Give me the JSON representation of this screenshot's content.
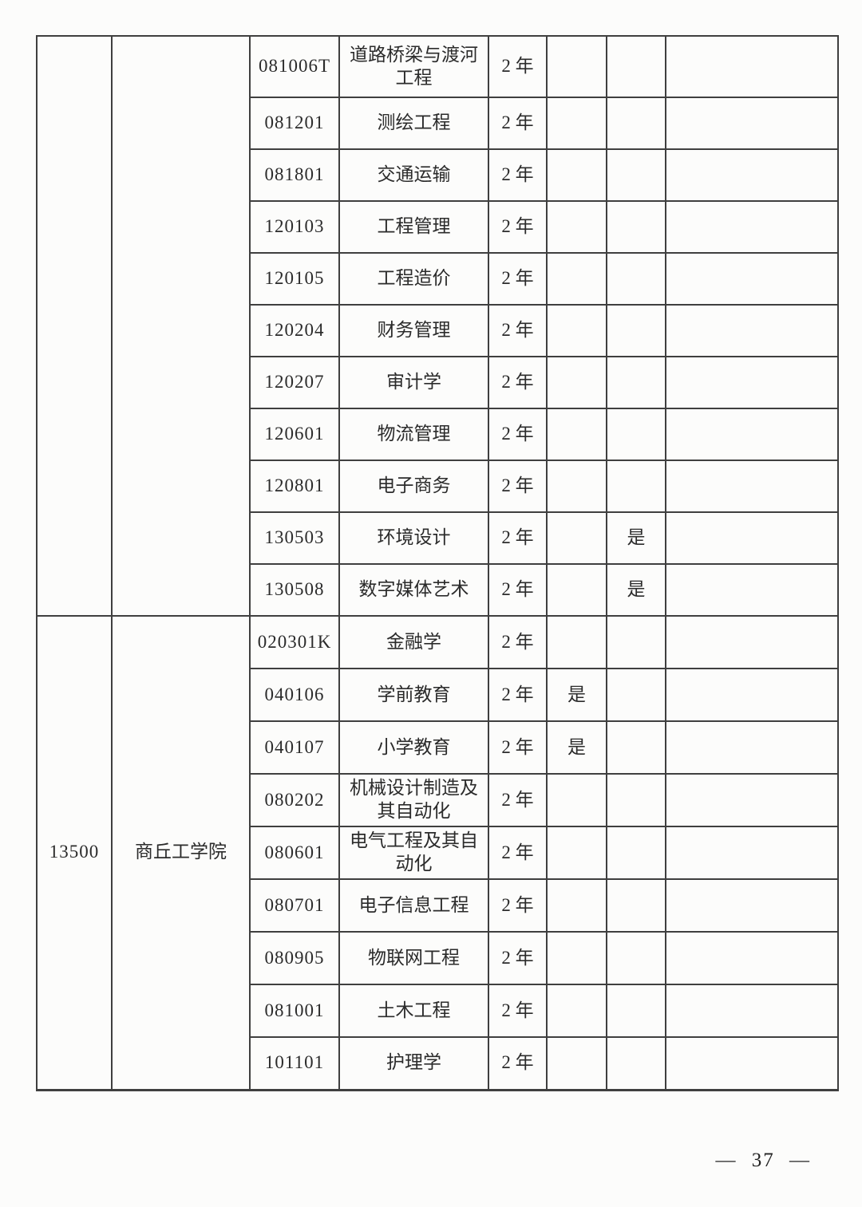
{
  "page": {
    "number_display": "— 37 —"
  },
  "table": {
    "sections": [
      {
        "school_code": "",
        "school_name": "",
        "rows": [
          {
            "code": "081006T",
            "name": "道路桥梁与渡河工程",
            "duration": "2 年",
            "flag1": "",
            "flag2": "",
            "remark": ""
          },
          {
            "code": "081201",
            "name": "测绘工程",
            "duration": "2 年",
            "flag1": "",
            "flag2": "",
            "remark": ""
          },
          {
            "code": "081801",
            "name": "交通运输",
            "duration": "2 年",
            "flag1": "",
            "flag2": "",
            "remark": ""
          },
          {
            "code": "120103",
            "name": "工程管理",
            "duration": "2 年",
            "flag1": "",
            "flag2": "",
            "remark": ""
          },
          {
            "code": "120105",
            "name": "工程造价",
            "duration": "2 年",
            "flag1": "",
            "flag2": "",
            "remark": ""
          },
          {
            "code": "120204",
            "name": "财务管理",
            "duration": "2 年",
            "flag1": "",
            "flag2": "",
            "remark": ""
          },
          {
            "code": "120207",
            "name": "审计学",
            "duration": "2 年",
            "flag1": "",
            "flag2": "",
            "remark": ""
          },
          {
            "code": "120601",
            "name": "物流管理",
            "duration": "2 年",
            "flag1": "",
            "flag2": "",
            "remark": ""
          },
          {
            "code": "120801",
            "name": "电子商务",
            "duration": "2 年",
            "flag1": "",
            "flag2": "",
            "remark": ""
          },
          {
            "code": "130503",
            "name": "环境设计",
            "duration": "2 年",
            "flag1": "",
            "flag2": "是",
            "remark": ""
          },
          {
            "code": "130508",
            "name": "数字媒体艺术",
            "duration": "2 年",
            "flag1": "",
            "flag2": "是",
            "remark": ""
          }
        ]
      },
      {
        "school_code": "13500",
        "school_name": "商丘工学院",
        "rows": [
          {
            "code": "020301K",
            "name": "金融学",
            "duration": "2 年",
            "flag1": "",
            "flag2": "",
            "remark": ""
          },
          {
            "code": "040106",
            "name": "学前教育",
            "duration": "2 年",
            "flag1": "是",
            "flag2": "",
            "remark": ""
          },
          {
            "code": "040107",
            "name": "小学教育",
            "duration": "2 年",
            "flag1": "是",
            "flag2": "",
            "remark": ""
          },
          {
            "code": "080202",
            "name": "机械设计制造及其自动化",
            "duration": "2 年",
            "flag1": "",
            "flag2": "",
            "remark": ""
          },
          {
            "code": "080601",
            "name": "电气工程及其自动化",
            "duration": "2 年",
            "flag1": "",
            "flag2": "",
            "remark": ""
          },
          {
            "code": "080701",
            "name": "电子信息工程",
            "duration": "2 年",
            "flag1": "",
            "flag2": "",
            "remark": ""
          },
          {
            "code": "080905",
            "name": "物联网工程",
            "duration": "2 年",
            "flag1": "",
            "flag2": "",
            "remark": ""
          },
          {
            "code": "081001",
            "name": "土木工程",
            "duration": "2 年",
            "flag1": "",
            "flag2": "",
            "remark": ""
          },
          {
            "code": "101101",
            "name": "护理学",
            "duration": "2 年",
            "flag1": "",
            "flag2": "",
            "remark": ""
          }
        ]
      }
    ]
  }
}
